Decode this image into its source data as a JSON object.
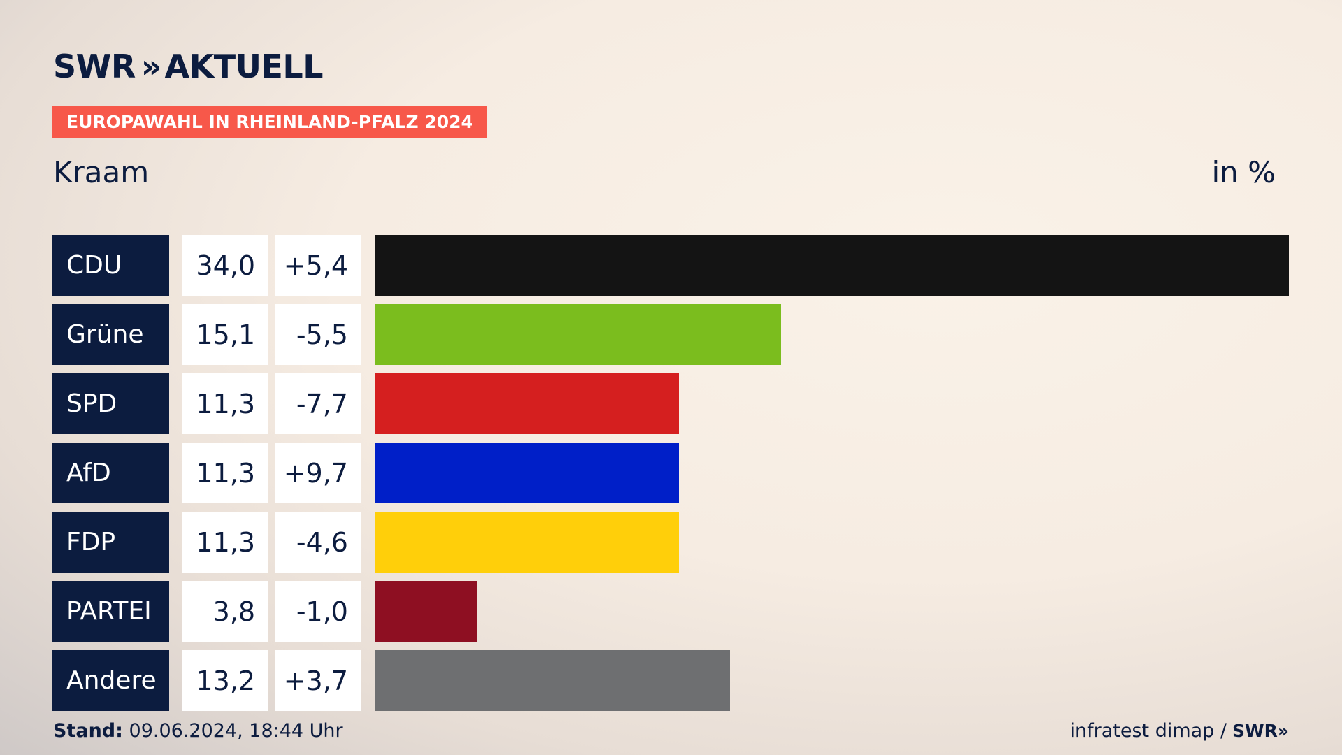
{
  "header": {
    "logo_swr": "SWR",
    "logo_chevrons": "»",
    "logo_aktuell": "AKTUELL",
    "tag": "EUROPAWAHL IN RHEINLAND-PFALZ 2024",
    "region": "Kraam",
    "unit": "in %"
  },
  "footer": {
    "stand_label": "Stand:",
    "stand_value": "09.06.2024, 18:44 Uhr",
    "source": "infratest dimap /",
    "source_logo": "SWR»"
  },
  "colors": {
    "accent": "#f7584a",
    "navy": "#0c1c3f"
  },
  "chart_data": {
    "type": "bar",
    "categories": [
      "CDU",
      "Grüne",
      "SPD",
      "AfD",
      "FDP",
      "PARTEI",
      "Andere"
    ],
    "values": [
      34.0,
      15.1,
      11.3,
      11.3,
      11.3,
      3.8,
      13.2
    ],
    "value_labels": [
      "34,0",
      "15,1",
      "11,3",
      "11,3",
      "11,3",
      "3,8",
      "13,2"
    ],
    "diff_labels": [
      "+5,4",
      "-5,5",
      "-7,7",
      "+9,7",
      "-4,6",
      "-1,0",
      "+3,7"
    ],
    "colors": [
      "#141414",
      "#7bbd1e",
      "#d51f1f",
      "#001fc8",
      "#ffcf0a",
      "#8e0f22",
      "#6e6f71"
    ],
    "orientation": "horizontal",
    "xlim": [
      0,
      34.0
    ]
  }
}
